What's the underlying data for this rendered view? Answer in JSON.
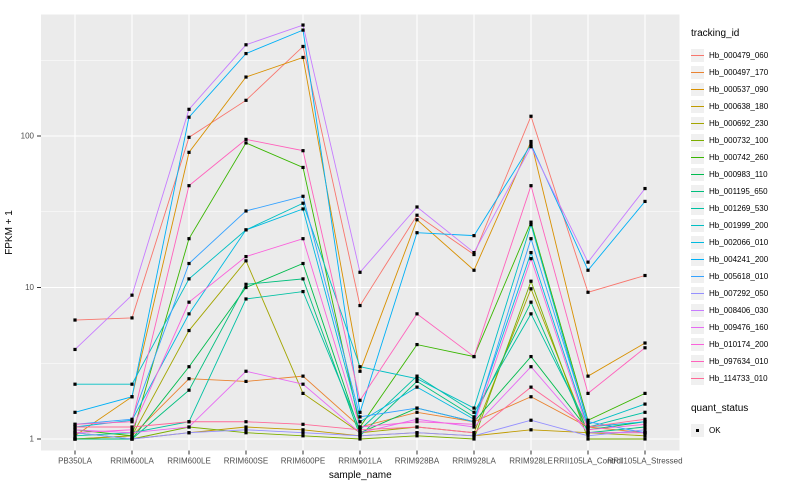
{
  "figure": {
    "panel_bg": "#EBEBEB",
    "grid_color": "#FFFFFF",
    "tick_label_color": "#4D4D4D",
    "axis_title_color": "#000000",
    "point_color": "#000000"
  },
  "legend": {
    "tracking_title": "tracking_id",
    "quant_title": "quant_status",
    "quant_value": "OK"
  },
  "chart_data": {
    "type": "line",
    "title": "",
    "xlabel": "sample_name",
    "ylabel": "FPKM + 1",
    "y_scale": "log10",
    "ylim": [
      0.85,
      630
    ],
    "y_tick_labels": [
      "1",
      "10",
      "100"
    ],
    "y_tick_values": [
      1,
      10,
      100
    ],
    "y_minor_values": [
      3.1623,
      31.623,
      316.23
    ],
    "grid": true,
    "legend_position": "right",
    "point_marker": "black-square",
    "quant_status": "OK",
    "categories": [
      "PB350LA",
      "RRIM600LA",
      "RRIM600LE",
      "RRIM600SE",
      "RRIM600PE",
      "RRIM901LA",
      "RRIM928BA",
      "RRIM928LA",
      "RRIM928LE",
      "RRII105LA_Control",
      "RRII105LA_Stressed"
    ],
    "series": [
      {
        "name": "Hb_000479_060",
        "color": "#F8766D",
        "values": [
          6.1,
          6.3,
          98,
          172,
          390,
          7.6,
          30,
          16.5,
          135,
          9.3,
          12
        ]
      },
      {
        "name": "Hb_000497_170",
        "color": "#EA8331",
        "values": [
          1.0,
          1.05,
          2.5,
          2.4,
          2.6,
          1.2,
          1.5,
          1.3,
          1.9,
          1.2,
          1.1
        ]
      },
      {
        "name": "Hb_000537_090",
        "color": "#D89000",
        "values": [
          1.05,
          1.9,
          78,
          245,
          330,
          2.8,
          28,
          13,
          92,
          2.6,
          4.3
        ]
      },
      {
        "name": "Hb_000638_180",
        "color": "#C09B00",
        "values": [
          1.0,
          1.0,
          1.1,
          1.2,
          1.15,
          1.05,
          1.1,
          1.05,
          1.15,
          1.1,
          1.1
        ]
      },
      {
        "name": "Hb_000692_230",
        "color": "#A3A500",
        "values": [
          1.0,
          1.05,
          5.2,
          15,
          2.0,
          1.1,
          1.2,
          1.1,
          9.8,
          1.1,
          1.05
        ]
      },
      {
        "name": "Hb_000732_100",
        "color": "#7CAE00",
        "values": [
          1.0,
          1.0,
          1.2,
          1.1,
          1.05,
          1.0,
          1.05,
          1.0,
          11,
          1.0,
          1.0
        ]
      },
      {
        "name": "Hb_000742_260",
        "color": "#39B600",
        "values": [
          1.15,
          1.05,
          21,
          90,
          62,
          1.2,
          4.2,
          3.5,
          27,
          1.33,
          2.0
        ]
      },
      {
        "name": "Hb_000983_110",
        "color": "#00BB4E",
        "values": [
          1.1,
          1.0,
          3.0,
          10,
          14.4,
          1.1,
          1.6,
          1.3,
          3.5,
          1.15,
          1.3
        ]
      },
      {
        "name": "Hb_001195_650",
        "color": "#00BF7D",
        "values": [
          1.0,
          1.0,
          2.1,
          10.5,
          11.4,
          1.05,
          2.4,
          1.4,
          8.0,
          1.1,
          1.2
        ]
      },
      {
        "name": "Hb_001269_530",
        "color": "#00C1A3",
        "values": [
          1.05,
          1.1,
          1.3,
          8.4,
          9.4,
          1.15,
          2.6,
          1.5,
          6.7,
          1.2,
          1.5
        ]
      },
      {
        "name": "Hb_001999_200",
        "color": "#00BFC4",
        "values": [
          2.3,
          2.3,
          11.4,
          24,
          36,
          3.0,
          2.5,
          1.6,
          26,
          1.25,
          1.7
        ]
      },
      {
        "name": "Hb_002066_010",
        "color": "#00BAE0",
        "values": [
          1.2,
          1.33,
          6.7,
          24,
          33,
          1.3,
          2.2,
          1.35,
          17,
          1.2,
          1.3
        ]
      },
      {
        "name": "Hb_004241_200",
        "color": "#00B0F6",
        "values": [
          1.5,
          1.9,
          133,
          350,
          500,
          1.5,
          23,
          22,
          88,
          13,
          37
        ]
      },
      {
        "name": "Hb_005618_010",
        "color": "#35A2FF",
        "values": [
          1.25,
          1.35,
          14.4,
          32,
          40,
          1.4,
          1.6,
          1.3,
          21,
          1.3,
          1.1
        ]
      },
      {
        "name": "Hb_007292_050",
        "color": "#9590FF",
        "values": [
          1.1,
          1.0,
          1.1,
          1.15,
          1.1,
          1.05,
          1.1,
          1.05,
          1.33,
          1.05,
          1.15
        ]
      },
      {
        "name": "Hb_008406_030",
        "color": "#C77CFF",
        "values": [
          3.9,
          8.9,
          150,
          400,
          540,
          12.6,
          34,
          17,
          85,
          14.7,
          45
        ]
      },
      {
        "name": "Hb_009476_160",
        "color": "#E76BF3",
        "values": [
          1.15,
          1.1,
          1.2,
          2.8,
          2.3,
          1.1,
          1.35,
          1.2,
          3.0,
          1.1,
          1.1
        ]
      },
      {
        "name": "Hb_010174_200",
        "color": "#FA62DB",
        "values": [
          1.1,
          1.15,
          8.0,
          16,
          21,
          1.2,
          1.3,
          1.25,
          15.5,
          1.15,
          1.25
        ]
      },
      {
        "name": "Hb_097634_010",
        "color": "#FF62BC",
        "values": [
          1.25,
          1.3,
          47,
          95,
          80,
          1.8,
          6.7,
          3.5,
          47,
          2.0,
          4.0
        ]
      },
      {
        "name": "Hb_114733_010",
        "color": "#FF6A98",
        "values": [
          1.2,
          1.2,
          1.3,
          1.3,
          1.25,
          1.15,
          1.2,
          1.1,
          2.2,
          1.2,
          1.35
        ]
      }
    ]
  }
}
